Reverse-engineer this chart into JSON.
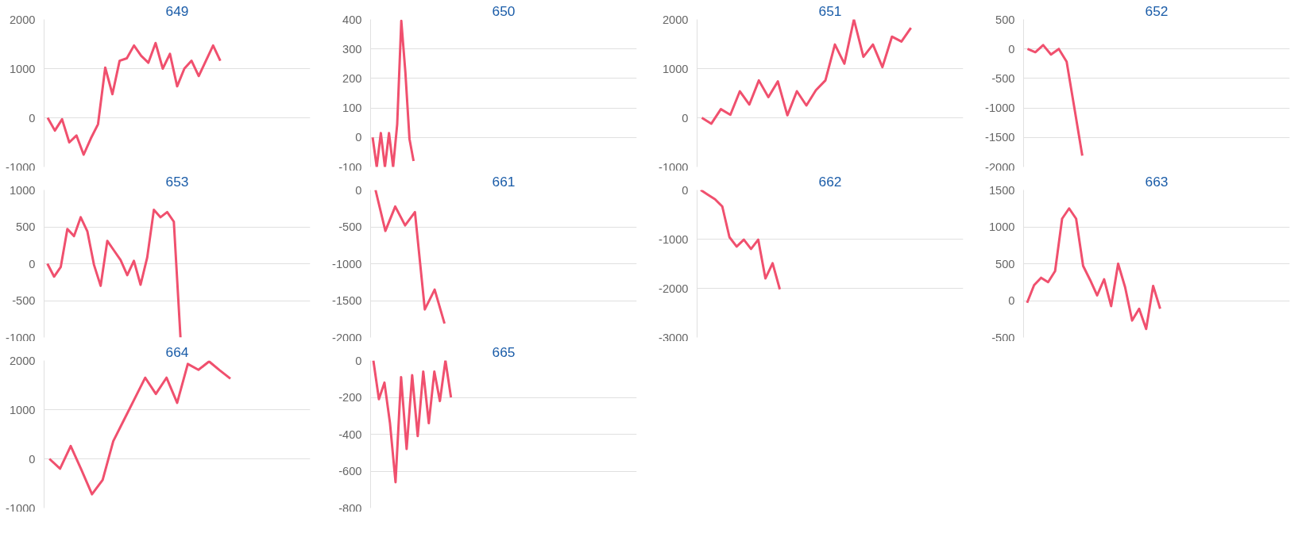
{
  "chart_data": [
    {
      "type": "line",
      "title": "649",
      "categories": [
        null,
        null,
        null,
        null,
        null,
        null,
        null,
        null,
        null,
        null,
        null,
        null,
        null,
        null,
        null,
        null,
        null,
        null,
        null,
        null,
        null,
        null,
        null,
        null,
        null,
        null,
        null,
        null,
        null,
        null,
        null,
        null,
        null,
        null,
        null,
        null,
        null
      ],
      "values": [
        0,
        -260,
        -30,
        -500,
        -360,
        -750,
        -420,
        -130,
        1020,
        480,
        1160,
        1210,
        1470,
        1260,
        1120,
        1520,
        1000,
        1300,
        640,
        1000,
        1160,
        850,
        1160,
        1470,
        1160,
        null,
        null,
        null,
        null,
        null,
        null,
        null,
        null,
        null,
        null,
        null,
        null
      ],
      "color": "#f0506e",
      "ylim": [
        -1000,
        2000
      ],
      "yticks": [
        -1000,
        0,
        1000,
        2000
      ],
      "grid": "y",
      "tick_labels": "y",
      "marker": "none",
      "line_style": "solid"
    },
    {
      "type": "line",
      "title": "650",
      "categories": [
        null,
        null,
        null,
        null,
        null,
        null,
        null,
        null,
        null,
        null,
        null,
        null,
        null,
        null,
        null,
        null,
        null,
        null,
        null,
        null,
        null,
        null,
        null,
        null,
        null,
        null,
        null,
        null,
        null,
        null,
        null,
        null,
        null,
        null,
        null,
        null,
        null,
        null,
        null,
        null,
        null,
        null,
        null,
        null,
        null,
        null,
        null,
        null,
        null,
        null,
        null,
        null,
        null,
        null,
        null,
        null,
        null,
        null,
        null,
        null,
        null,
        null,
        null,
        null,
        null
      ],
      "values": [
        0,
        -100,
        15,
        -100,
        15,
        -100,
        45,
        395,
        220,
        -5,
        -80,
        null,
        null,
        null,
        null,
        null,
        null,
        null,
        null,
        null,
        null,
        null,
        null,
        null,
        null,
        null,
        null,
        null,
        null,
        null,
        null,
        null,
        null,
        null,
        null,
        null,
        null,
        null,
        null,
        null,
        null,
        null,
        null,
        null,
        null,
        null,
        null,
        null,
        null,
        null,
        null,
        null,
        null,
        null,
        null,
        null,
        null,
        null,
        null,
        null,
        null,
        null,
        null,
        null,
        null
      ],
      "color": "#f0506e",
      "ylim": [
        -100,
        400
      ],
      "yticks": [
        -100,
        0,
        100,
        200,
        300,
        400
      ],
      "grid": "y",
      "tick_labels": "y",
      "marker": "none",
      "line_style": "solid"
    },
    {
      "type": "line",
      "title": "651",
      "categories": [
        null,
        null,
        null,
        null,
        null,
        null,
        null,
        null,
        null,
        null,
        null,
        null,
        null,
        null,
        null,
        null,
        null,
        null,
        null,
        null,
        null,
        null,
        null,
        null,
        null,
        null,
        null,
        null
      ],
      "values": [
        0,
        -120,
        175,
        60,
        540,
        270,
        760,
        420,
        740,
        50,
        540,
        250,
        560,
        760,
        1490,
        1100,
        2000,
        1240,
        1490,
        1030,
        1650,
        1550,
        1830,
        null,
        null,
        null,
        null,
        null
      ],
      "color": "#f0506e",
      "ylim": [
        -1000,
        2000
      ],
      "yticks": [
        -1000,
        0,
        1000,
        2000
      ],
      "grid": "y",
      "tick_labels": "y",
      "marker": "none",
      "line_style": "solid"
    },
    {
      "type": "line",
      "title": "652",
      "categories": [
        null,
        null,
        null,
        null,
        null,
        null,
        null,
        null,
        null,
        null,
        null,
        null,
        null,
        null,
        null,
        null,
        null,
        null,
        null,
        null,
        null,
        null,
        null,
        null,
        null,
        null,
        null,
        null,
        null,
        null,
        null,
        null,
        null,
        null
      ],
      "values": [
        0,
        -55,
        65,
        -95,
        0,
        -215,
        -1010,
        -1810,
        null,
        null,
        null,
        null,
        null,
        null,
        null,
        null,
        null,
        null,
        null,
        null,
        null,
        null,
        null,
        null,
        null,
        null,
        null,
        null,
        null,
        null,
        null,
        null,
        null,
        null
      ],
      "color": "#f0506e",
      "ylim": [
        -2000,
        500
      ],
      "yticks": [
        -2000,
        -1500,
        -1000,
        -500,
        0,
        500
      ],
      "grid": "y",
      "tick_labels": "y",
      "marker": "none",
      "line_style": "solid"
    },
    {
      "type": "line",
      "title": "653",
      "categories": [
        null,
        null,
        null,
        null,
        null,
        null,
        null,
        null,
        null,
        null,
        null,
        null,
        null,
        null,
        null,
        null,
        null,
        null,
        null,
        null,
        null,
        null,
        null,
        null,
        null,
        null,
        null,
        null,
        null,
        null,
        null,
        null,
        null,
        null,
        null,
        null,
        null,
        null,
        null,
        null
      ],
      "values": [
        0,
        -175,
        -45,
        470,
        375,
        630,
        440,
        -15,
        -300,
        310,
        180,
        50,
        -155,
        40,
        -285,
        85,
        730,
        630,
        700,
        570,
        -1000,
        null,
        null,
        null,
        null,
        null,
        null,
        null,
        null,
        null,
        null,
        null,
        null,
        null,
        null,
        null,
        null,
        null,
        null,
        null
      ],
      "color": "#f0506e",
      "ylim": [
        -1000,
        1000
      ],
      "yticks": [
        -1000,
        -500,
        0,
        500,
        1000
      ],
      "grid": "y",
      "tick_labels": "y",
      "marker": "none",
      "line_style": "solid"
    },
    {
      "type": "line",
      "title": "661",
      "categories": [
        null,
        null,
        null,
        null,
        null,
        null,
        null,
        null,
        null,
        null,
        null,
        null,
        null,
        null,
        null,
        null,
        null,
        null,
        null,
        null,
        null,
        null,
        null,
        null,
        null,
        null,
        null
      ],
      "values": [
        0,
        -555,
        -225,
        -480,
        -300,
        -1620,
        -1350,
        -1810,
        null,
        null,
        null,
        null,
        null,
        null,
        null,
        null,
        null,
        null,
        null,
        null,
        null,
        null,
        null,
        null,
        null,
        null,
        null
      ],
      "color": "#f0506e",
      "ylim": [
        -2000,
        0
      ],
      "yticks": [
        -2000,
        -1500,
        -1000,
        -500,
        0
      ],
      "grid": "y",
      "tick_labels": "y",
      "marker": "none",
      "line_style": "solid"
    },
    {
      "type": "line",
      "title": "662",
      "categories": [
        null,
        null,
        null,
        null,
        null,
        null,
        null,
        null,
        null,
        null,
        null,
        null,
        null,
        null,
        null,
        null,
        null,
        null,
        null,
        null,
        null,
        null,
        null,
        null,
        null,
        null,
        null,
        null,
        null,
        null,
        null,
        null,
        null,
        null,
        null,
        null,
        null
      ],
      "values": [
        0,
        -95,
        -190,
        -335,
        -960,
        -1150,
        -1010,
        -1200,
        -1010,
        -1800,
        -1490,
        -2020,
        null,
        null,
        null,
        null,
        null,
        null,
        null,
        null,
        null,
        null,
        null,
        null,
        null,
        null,
        null,
        null,
        null,
        null,
        null,
        null,
        null,
        null,
        null,
        null,
        null
      ],
      "color": "#f0506e",
      "ylim": [
        -3000,
        0
      ],
      "yticks": [
        -3000,
        -2000,
        -1000,
        0
      ],
      "grid": "y",
      "tick_labels": "y",
      "marker": "none",
      "line_style": "solid"
    },
    {
      "type": "line",
      "title": "663",
      "categories": [
        null,
        null,
        null,
        null,
        null,
        null,
        null,
        null,
        null,
        null,
        null,
        null,
        null,
        null,
        null,
        null,
        null,
        null,
        null,
        null,
        null,
        null,
        null,
        null,
        null,
        null,
        null,
        null,
        null,
        null,
        null,
        null,
        null,
        null,
        null,
        null,
        null,
        null
      ],
      "values": [
        -30,
        210,
        310,
        250,
        400,
        1110,
        1250,
        1110,
        470,
        280,
        70,
        290,
        -75,
        500,
        180,
        -270,
        -110,
        -385,
        200,
        -110,
        null,
        null,
        null,
        null,
        null,
        null,
        null,
        null,
        null,
        null,
        null,
        null,
        null,
        null,
        null,
        null,
        null,
        null
      ],
      "color": "#f0506e",
      "ylim": [
        -500,
        1500
      ],
      "yticks": [
        -500,
        0,
        500,
        1000,
        1500
      ],
      "grid": "y",
      "tick_labels": "y",
      "marker": "none",
      "line_style": "solid"
    },
    {
      "type": "line",
      "title": "664",
      "categories": [
        null,
        null,
        null,
        null,
        null,
        null,
        null,
        null,
        null,
        null,
        null,
        null,
        null,
        null,
        null,
        null,
        null,
        null,
        null,
        null,
        null,
        null,
        null,
        null,
        null
      ],
      "values": [
        0,
        -200,
        260,
        -220,
        -720,
        -430,
        360,
        790,
        1220,
        1650,
        1320,
        1650,
        1140,
        1930,
        1810,
        1980,
        1800,
        1630,
        null,
        null,
        null,
        null,
        null,
        null,
        null
      ],
      "color": "#f0506e",
      "ylim": [
        -1000,
        2000
      ],
      "yticks": [
        -1000,
        0,
        1000,
        2000
      ],
      "grid": "y",
      "tick_labels": "y",
      "marker": "none",
      "line_style": "solid"
    },
    {
      "type": "line",
      "title": "665",
      "categories": [
        null,
        null,
        null,
        null,
        null,
        null,
        null,
        null,
        null,
        null,
        null,
        null,
        null,
        null,
        null,
        null,
        null,
        null,
        null,
        null,
        null,
        null,
        null,
        null,
        null,
        null,
        null,
        null,
        null,
        null,
        null,
        null,
        null,
        null,
        null,
        null,
        null,
        null,
        null,
        null,
        null,
        null,
        null,
        null,
        null,
        null,
        null,
        null
      ],
      "values": [
        0,
        -210,
        -120,
        -340,
        -660,
        -90,
        -480,
        -80,
        -410,
        -60,
        -340,
        -60,
        -220,
        0,
        -200,
        null,
        null,
        null,
        null,
        null,
        null,
        null,
        null,
        null,
        null,
        null,
        null,
        null,
        null,
        null,
        null,
        null,
        null,
        null,
        null,
        null,
        null,
        null,
        null,
        null,
        null,
        null,
        null,
        null,
        null,
        null,
        null,
        null
      ],
      "color": "#f0506e",
      "ylim": [
        -800,
        0
      ],
      "yticks": [
        -800,
        -600,
        -400,
        -200,
        0
      ],
      "grid": "y",
      "tick_labels": "y",
      "marker": "none",
      "line_style": "solid"
    }
  ]
}
